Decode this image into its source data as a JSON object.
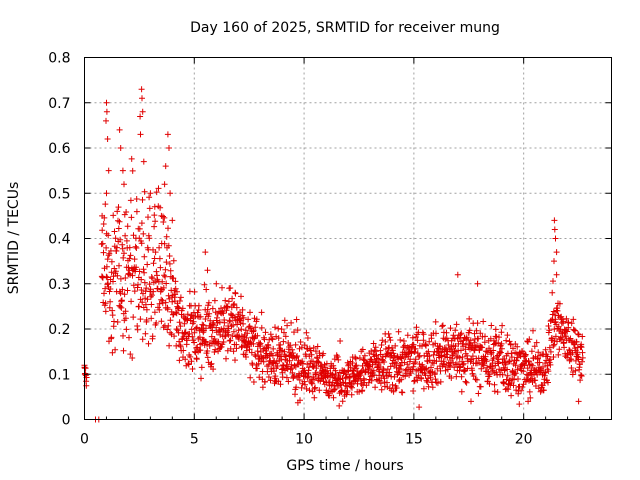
{
  "chart_data": {
    "type": "scatter",
    "title": "Day 160 of 2025, SRMTID for receiver mung",
    "xlabel": "GPS time / hours",
    "ylabel": "SRMTID / TECUs",
    "xlim": [
      0,
      24
    ],
    "ylim": [
      0,
      0.8
    ],
    "xticks": [
      0,
      5,
      10,
      15,
      20
    ],
    "xtick_labels": [
      "0",
      "5",
      "10",
      "15",
      "20"
    ],
    "yticks": [
      0,
      0.1,
      0.2,
      0.3,
      0.4,
      0.5,
      0.6,
      0.7,
      0.8
    ],
    "ytick_labels": [
      "0",
      "0.1",
      "0.2",
      "0.3",
      "0.4",
      "0.5",
      "0.6",
      "0.7",
      "0.8"
    ],
    "grid": true,
    "marker": "plus",
    "color": "#e00000",
    "data_time_range": [
      0.0,
      22.7
    ],
    "trend": [
      {
        "t": 0.0,
        "level": 0.11,
        "spread": 0.02
      },
      {
        "t": 0.5,
        "level": 0.0,
        "spread": 0.0
      },
      {
        "t": 0.8,
        "level": 0.3,
        "spread": 0.12
      },
      {
        "t": 1.2,
        "level": 0.3,
        "spread": 0.15
      },
      {
        "t": 1.8,
        "level": 0.32,
        "spread": 0.14
      },
      {
        "t": 2.5,
        "level": 0.32,
        "spread": 0.16
      },
      {
        "t": 3.2,
        "level": 0.33,
        "spread": 0.15
      },
      {
        "t": 3.8,
        "level": 0.28,
        "spread": 0.13
      },
      {
        "t": 4.3,
        "level": 0.22,
        "spread": 0.08
      },
      {
        "t": 5.0,
        "level": 0.18,
        "spread": 0.07
      },
      {
        "t": 6.0,
        "level": 0.2,
        "spread": 0.07
      },
      {
        "t": 7.0,
        "level": 0.21,
        "spread": 0.07
      },
      {
        "t": 7.8,
        "level": 0.15,
        "spread": 0.05
      },
      {
        "t": 9.0,
        "level": 0.13,
        "spread": 0.06
      },
      {
        "t": 10.0,
        "level": 0.12,
        "spread": 0.06
      },
      {
        "t": 11.0,
        "level": 0.1,
        "spread": 0.04
      },
      {
        "t": 12.0,
        "level": 0.09,
        "spread": 0.04
      },
      {
        "t": 13.0,
        "level": 0.11,
        "spread": 0.05
      },
      {
        "t": 14.0,
        "level": 0.12,
        "spread": 0.06
      },
      {
        "t": 15.0,
        "level": 0.13,
        "spread": 0.06
      },
      {
        "t": 16.0,
        "level": 0.14,
        "spread": 0.06
      },
      {
        "t": 17.0,
        "level": 0.15,
        "spread": 0.06
      },
      {
        "t": 18.0,
        "level": 0.14,
        "spread": 0.06
      },
      {
        "t": 19.0,
        "level": 0.13,
        "spread": 0.07
      },
      {
        "t": 20.0,
        "level": 0.11,
        "spread": 0.05
      },
      {
        "t": 21.0,
        "level": 0.11,
        "spread": 0.05
      },
      {
        "t": 21.4,
        "level": 0.22,
        "spread": 0.08
      },
      {
        "t": 22.0,
        "level": 0.17,
        "spread": 0.06
      },
      {
        "t": 22.7,
        "level": 0.14,
        "spread": 0.06
      }
    ],
    "notable_points": [
      {
        "x": 1.0,
        "y": 0.7
      },
      {
        "x": 1.02,
        "y": 0.68
      },
      {
        "x": 0.98,
        "y": 0.66
      },
      {
        "x": 1.05,
        "y": 0.62
      },
      {
        "x": 1.1,
        "y": 0.55
      },
      {
        "x": 1.0,
        "y": 0.5
      },
      {
        "x": 0.8,
        "y": 0.45
      },
      {
        "x": 1.6,
        "y": 0.64
      },
      {
        "x": 1.65,
        "y": 0.6
      },
      {
        "x": 1.75,
        "y": 0.55
      },
      {
        "x": 1.8,
        "y": 0.52
      },
      {
        "x": 2.6,
        "y": 0.73
      },
      {
        "x": 2.62,
        "y": 0.71
      },
      {
        "x": 2.65,
        "y": 0.68
      },
      {
        "x": 2.55,
        "y": 0.63
      },
      {
        "x": 2.7,
        "y": 0.57
      },
      {
        "x": 3.0,
        "y": 0.5
      },
      {
        "x": 3.2,
        "y": 0.47
      },
      {
        "x": 3.5,
        "y": 0.45
      },
      {
        "x": 3.8,
        "y": 0.63
      },
      {
        "x": 3.85,
        "y": 0.6
      },
      {
        "x": 3.7,
        "y": 0.56
      },
      {
        "x": 3.65,
        "y": 0.52
      },
      {
        "x": 3.9,
        "y": 0.5
      },
      {
        "x": 4.0,
        "y": 0.44
      },
      {
        "x": 5.5,
        "y": 0.37
      },
      {
        "x": 5.6,
        "y": 0.33
      },
      {
        "x": 6.0,
        "y": 0.3
      },
      {
        "x": 0.0,
        "y": 0.12
      },
      {
        "x": 0.02,
        "y": 0.1
      },
      {
        "x": 0.5,
        "y": 0.0
      },
      {
        "x": 0.65,
        "y": 0.0
      },
      {
        "x": 17.0,
        "y": 0.32
      },
      {
        "x": 17.9,
        "y": 0.3
      },
      {
        "x": 17.6,
        "y": 0.04
      },
      {
        "x": 21.4,
        "y": 0.44
      },
      {
        "x": 21.42,
        "y": 0.42
      },
      {
        "x": 21.45,
        "y": 0.4
      },
      {
        "x": 21.5,
        "y": 0.37
      },
      {
        "x": 21.38,
        "y": 0.35
      },
      {
        "x": 21.5,
        "y": 0.32
      },
      {
        "x": 21.3,
        "y": 0.28
      },
      {
        "x": 22.5,
        "y": 0.04
      },
      {
        "x": 11.6,
        "y": 0.03
      },
      {
        "x": 20.2,
        "y": 0.04
      }
    ]
  }
}
